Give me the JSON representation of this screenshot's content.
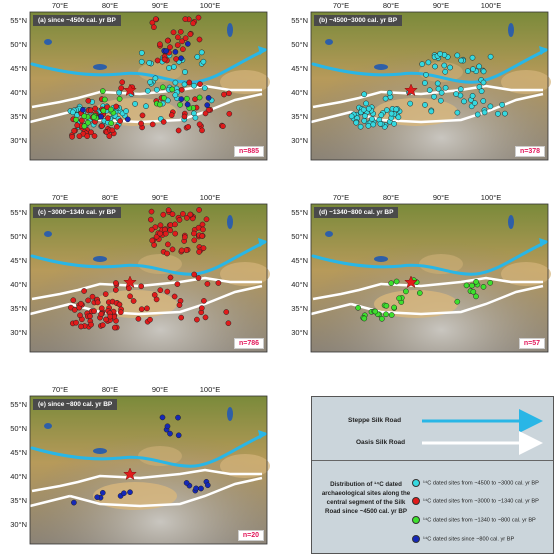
{
  "colors": {
    "teal": "#35d9e0",
    "red": "#e01b1b",
    "green": "#3ee02e",
    "blue": "#1528b8",
    "steppe": "#29b6e6",
    "oasis": "#ffffff",
    "count": "#e2185b"
  },
  "axes": {
    "lat_labels": [
      "55°N",
      "50°N",
      "45°N",
      "40°N",
      "35°N",
      "30°N"
    ],
    "lon_labels": [
      "70°E",
      "80°E",
      "90°E",
      "100°E"
    ]
  },
  "panels": [
    {
      "id": "a",
      "title": "(a) since ~4500 cal. yr BP",
      "count": "n=885"
    },
    {
      "id": "b",
      "title": "(b) ~4500~3000 cal. yr BP",
      "count": "n=378"
    },
    {
      "id": "c",
      "title": "(c) ~3000~1340 cal. yr BP",
      "count": "n=786"
    },
    {
      "id": "d",
      "title": "(d) ~1340~800 cal. yr BP",
      "count": "n=57"
    },
    {
      "id": "e",
      "title": "(e) since ~800 cal. yr BP",
      "count": "n=20"
    }
  ],
  "legend": {
    "steppe_label": "Steppe Silk Road",
    "oasis_label": "Oasis Silk Road",
    "description": "Distribution of ¹⁴C dated archaeological sites along the central segment of the Silk Road since ~4500 cal. yr BP",
    "items": [
      {
        "label": "¹⁴C dated sites from ~4500 to ~3000 cal. yr BP",
        "color": "#35d9e0"
      },
      {
        "label": "¹⁴C dated sites from ~3000 to ~1340 cal. yr BP",
        "color": "#e01b1b"
      },
      {
        "label": "¹⁴C dated sites from ~1340 to ~800 cal. yr BP",
        "color": "#3ee02e"
      },
      {
        "label": "¹⁴C dated sites since ~800 cal. yr BP",
        "color": "#1528b8"
      }
    ]
  }
}
